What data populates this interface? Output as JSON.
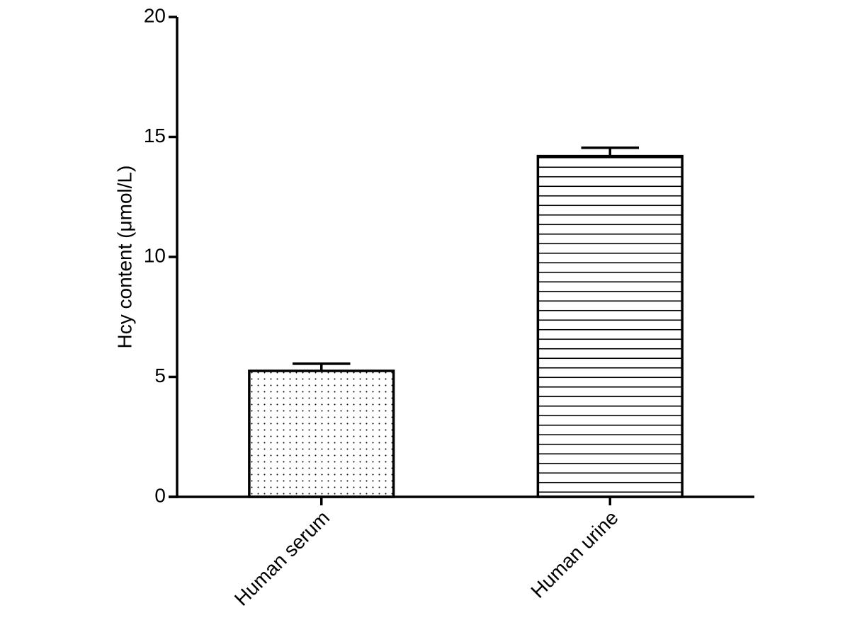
{
  "chart_data": {
    "type": "bar",
    "ylabel": "Hcy content (μmol/L)",
    "categories": [
      "Human serum",
      "Human urine"
    ],
    "values": [
      5.25,
      14.2
    ],
    "errors": [
      0.3,
      0.35
    ],
    "patterns": [
      "dots",
      "horizontal-lines"
    ],
    "color": "#000000",
    "ylim": [
      0,
      20
    ],
    "yticks": [
      0,
      5,
      10,
      15,
      20
    ],
    "grid": false
  }
}
